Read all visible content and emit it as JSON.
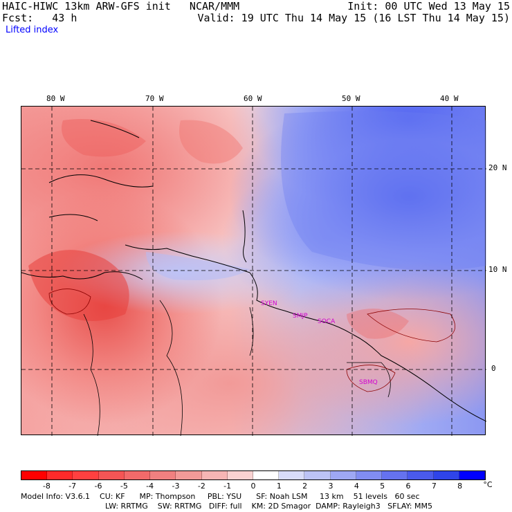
{
  "header": {
    "title": "HAIC-HIWC 13km ARW-GFS init   NCAR/MMM",
    "init": "Init: 00 UTC Wed 13 May 15",
    "fcst": "Fcst:   43 h",
    "valid": "Valid: 19 UTC Thu 14 May 15 (16 LST Thu 14 May 15)",
    "field": "Lifted index"
  },
  "map": {
    "lon_labels": [
      "80 W",
      "70 W",
      "60 W",
      "50 W",
      "40 W"
    ],
    "lat_labels": [
      "20 N",
      "10 N",
      "0"
    ],
    "stations": [
      "SYEN",
      "SMJP",
      "SOCA",
      "SBMQ"
    ]
  },
  "colorbar": {
    "ticks": [
      "-8",
      "-7",
      "-6",
      "-5",
      "-4",
      "-3",
      "-2",
      "-1",
      "0",
      "1",
      "2",
      "3",
      "4",
      "5",
      "6",
      "7",
      "8"
    ],
    "unit": "°C",
    "colors": [
      "#ff0000",
      "#ff2a2a",
      "#ff4040",
      "#f55555",
      "#f26a6a",
      "#f08080",
      "#f29a98",
      "#f6b5b4",
      "#f9d2d1",
      "#ffffff",
      "#d8dcfa",
      "#bcc3f6",
      "#9ea8f4",
      "#818df2",
      "#6572ef",
      "#4a5aec",
      "#2f44e9",
      "#0000ff"
    ]
  },
  "footer": {
    "line1": "Model Info: V3.6.1    CU: KF      MP: Thompson     PBL: YSU      SF: Noah LSM     13 km    51 levels   60 sec",
    "line2": "LW: RRTMG    SW: RRTMG   DIFF: full    KM: 2D Smagor  DAMP: Rayleigh3   SFLAY: MM5"
  }
}
